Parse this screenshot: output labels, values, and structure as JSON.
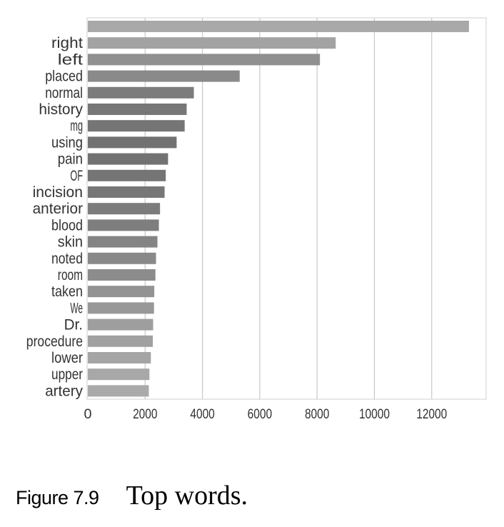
{
  "chart_data": {
    "type": "bar",
    "orientation": "horizontal",
    "categories": [
      "",
      "right",
      "left",
      "placed",
      "normal",
      "history",
      "mg",
      "using",
      "pain",
      "OF",
      "incision",
      "anterior",
      "blood",
      "skin",
      "noted",
      "room",
      "taken",
      "We",
      "Dr.",
      "procedure",
      "lower",
      "upper",
      "artery"
    ],
    "values": [
      13300,
      8650,
      8100,
      5300,
      3700,
      3450,
      3380,
      3100,
      2800,
      2720,
      2680,
      2520,
      2480,
      2430,
      2380,
      2360,
      2320,
      2310,
      2280,
      2270,
      2200,
      2150,
      2130
    ],
    "xticks": [
      "0",
      "2000",
      "4000",
      "6000",
      "8000",
      "10000",
      "12000"
    ],
    "xlim": [
      0,
      13900
    ],
    "grid": "vertical",
    "colors": [
      "#a9a9a9",
      "#a3a3a3",
      "#909090",
      "#8a8a8a",
      "#7c7c7c",
      "#777777",
      "#757575",
      "#727272",
      "#727272",
      "#757575",
      "#777777",
      "#7c7c7c",
      "#7e7e7e",
      "#848484",
      "#898989",
      "#8c8c8c",
      "#939393",
      "#989898",
      "#9e9e9e",
      "#a1a1a1",
      "#a5a5a5",
      "#a8a8a8",
      "#aaaaaa"
    ]
  },
  "caption": {
    "label": "Figure 7.9",
    "text": "Top words."
  }
}
